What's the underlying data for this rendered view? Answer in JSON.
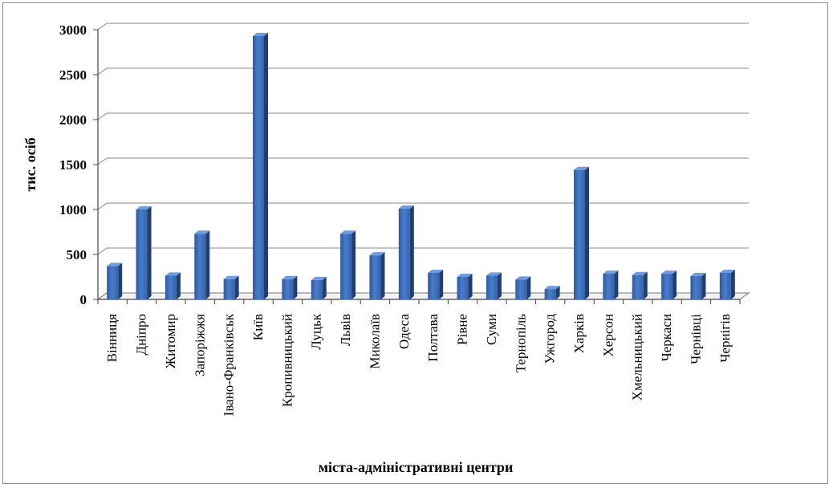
{
  "chart_data": {
    "type": "bar",
    "title": "",
    "xlabel": "міста-адміністративні центри",
    "ylabel": "тис. осіб",
    "ylim": [
      0,
      3000
    ],
    "yticks": [
      0,
      500,
      1000,
      1500,
      2000,
      2500,
      3000
    ],
    "grid": true,
    "legend": "none",
    "bar_color": "#4472c4",
    "categories": [
      "Вінниця",
      "Дніпро",
      "Житомир",
      "Запоріжжя",
      "Івано-Франківськ",
      "Київ",
      "Кропивницький",
      "Луцьк",
      "Львів",
      "Миколаїв",
      "Одеса",
      "Полтава",
      "Рівне",
      "Суми",
      "Тернопіль",
      "Ужгород",
      "Харків",
      "Херсон",
      "Хмельницький",
      "Черкаси",
      "Чернівці",
      "Чернігів"
    ],
    "values": [
      370,
      1000,
      265,
      730,
      225,
      2930,
      225,
      215,
      730,
      490,
      1010,
      295,
      250,
      265,
      220,
      115,
      1440,
      285,
      270,
      285,
      260,
      295
    ]
  }
}
